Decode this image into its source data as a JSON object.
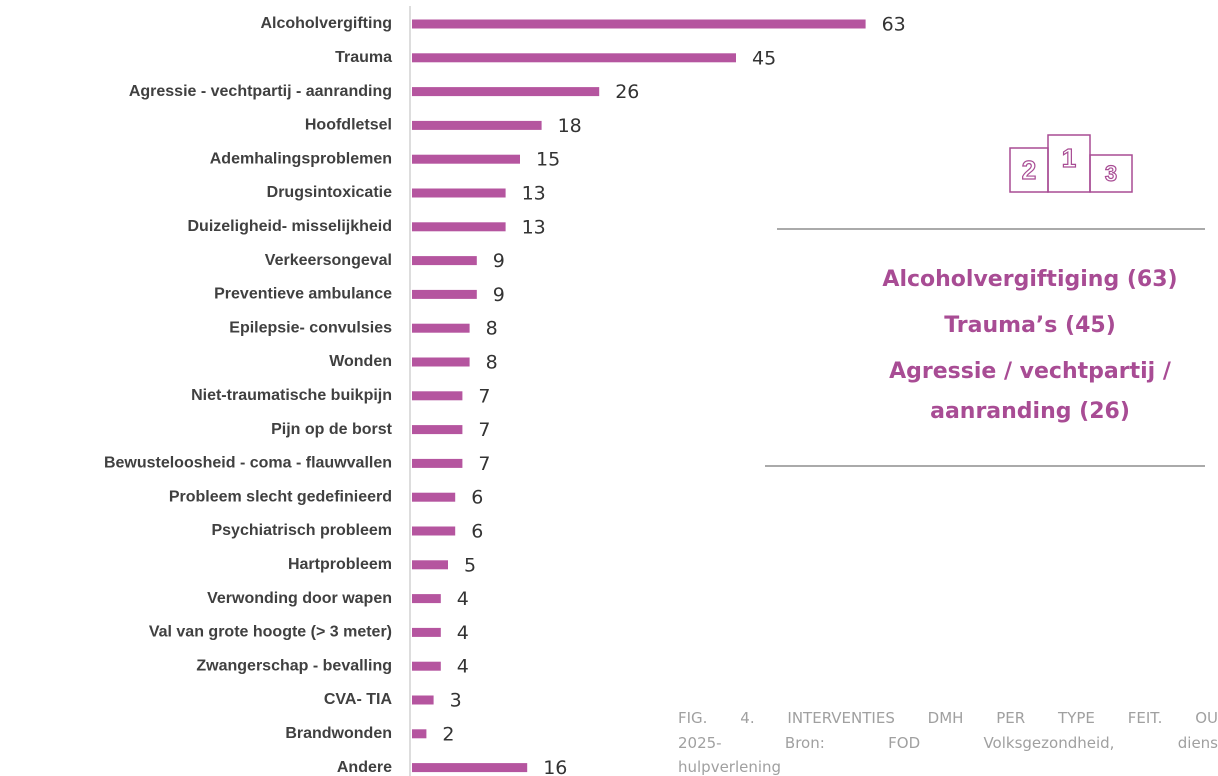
{
  "chart_data": {
    "type": "bar",
    "orientation": "horizontal",
    "categories": [
      "Alcoholvergifting",
      "Trauma",
      "Agressie - vechtpartij - aanranding",
      "Hoofdletsel",
      "Ademhalingsproblemen",
      "Drugsintoxicatie",
      "Duizeligheid- misselijkheid",
      "Verkeersongeval",
      "Preventieve ambulance",
      "Epilepsie- convulsies",
      "Wonden",
      "Niet-traumatische buikpijn",
      "Pijn op de borst",
      "Bewusteloosheid - coma - flauwvallen",
      "Probleem slecht gedefinieerd",
      "Psychiatrisch probleem",
      "Hartprobleem",
      "Verwonding door wapen",
      "Val van grote hoogte (> 3 meter)",
      "Zwangerschap - bevalling",
      "CVA- TIA",
      "Brandwonden",
      "Andere"
    ],
    "values": [
      63,
      45,
      26,
      18,
      15,
      13,
      13,
      9,
      9,
      8,
      8,
      7,
      7,
      7,
      6,
      6,
      5,
      4,
      4,
      4,
      3,
      2,
      16
    ],
    "color": "#b5559f"
  },
  "icon": [
    "2",
    "1",
    "3"
  ],
  "panel": [
    "Alcoholvergiftiging (63)",
    "Trauma’s (45)",
    "Agressie / vechtpartij /",
    "aanranding (26)"
  ],
  "caption": [
    "FIG. 4. INTERVENTIES DMH PER TYPE FEIT. OU",
    "2025- Bron: FOD Volksgezondheid, diens",
    "hulpverlening"
  ]
}
